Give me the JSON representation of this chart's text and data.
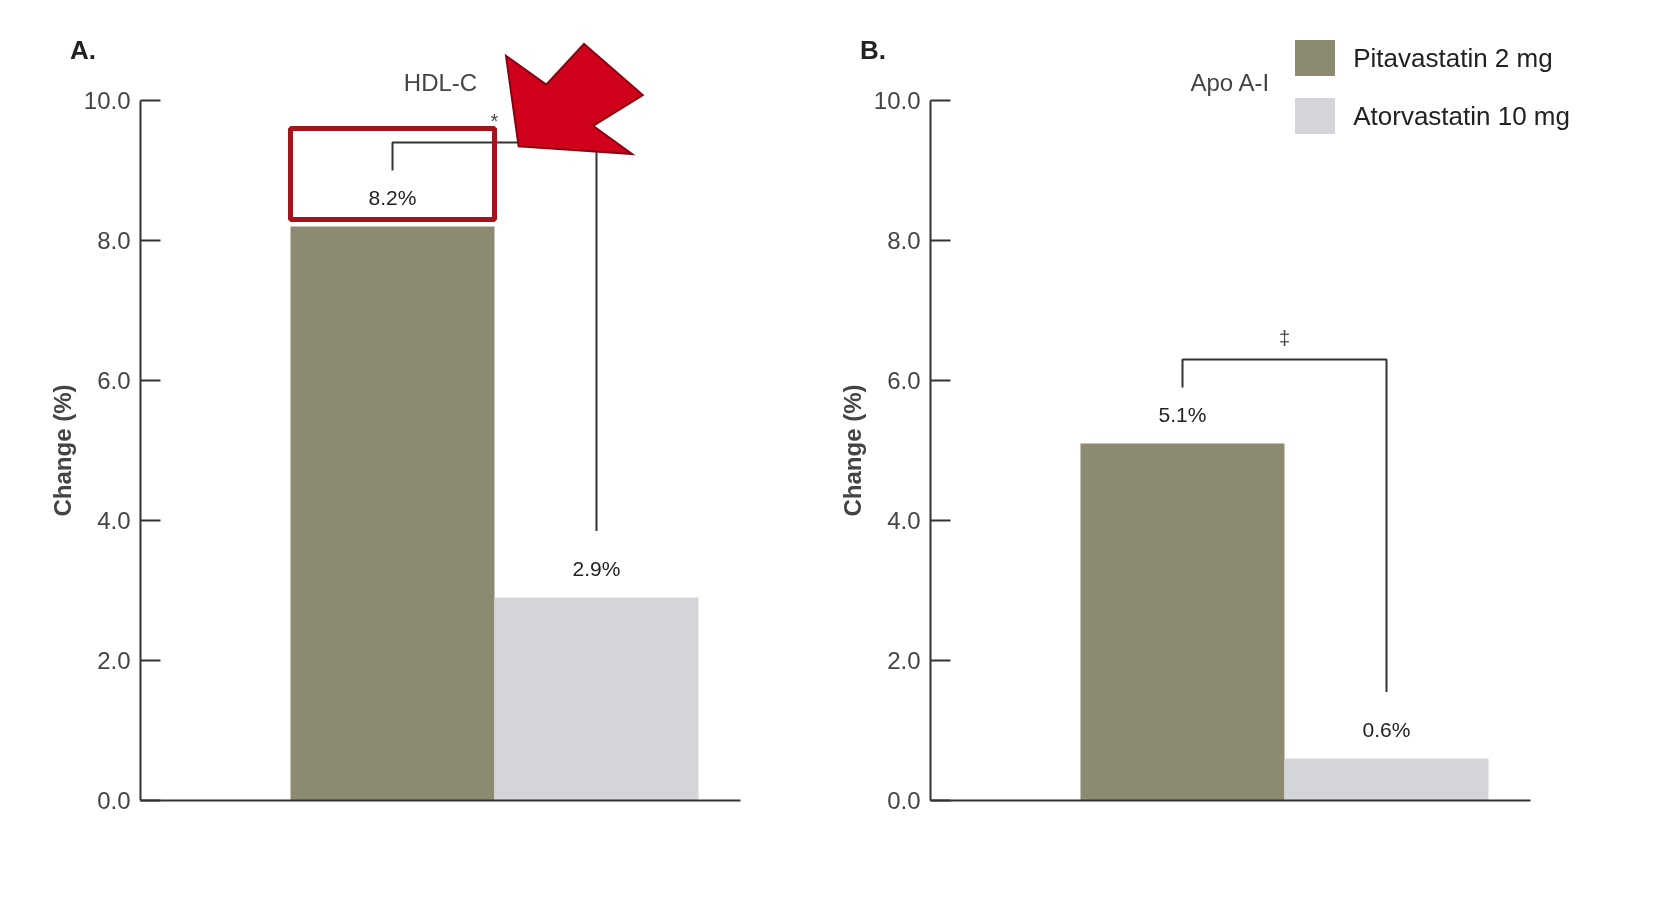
{
  "chart_data": [
    {
      "type": "bar",
      "title": "HDL-C",
      "ylabel": "Change (%)",
      "categories": [
        null
      ],
      "series": [
        {
          "color": "#8c8a70",
          "values": [
            8.2
          ],
          "value_labels": [
            "8.2%"
          ]
        },
        {
          "color": "#d4d5d8",
          "values": [
            2.9
          ],
          "value_labels": [
            "2.9%"
          ]
        }
      ],
      "ylim": [
        0,
        10
      ],
      "yticks": [
        {
          "value": 0,
          "label": "0.0"
        },
        {
          "value": 2,
          "label": "2.0"
        },
        {
          "value": 4,
          "label": "4.0"
        },
        {
          "value": 6,
          "label": "6.0"
        },
        {
          "value": 8,
          "label": "8.0"
        },
        {
          "value": 10,
          "label": "10.0"
        }
      ],
      "annotations": [
        "A.",
        "*"
      ],
      "grid": false,
      "tick_labels": "y"
    },
    {
      "type": "bar",
      "title": "Apo A-I",
      "ylabel": "Change (%)",
      "categories": [
        null
      ],
      "series": [
        {
          "name": "Pitavastatin 2 mg",
          "color": "#8c8a70",
          "values": [
            5.1
          ],
          "value_labels": [
            "5.1%"
          ]
        },
        {
          "name": "Atorvastatin 10 mg",
          "color": "#d4d5d8",
          "values": [
            0.6
          ],
          "value_labels": [
            "0.6%"
          ]
        }
      ],
      "ylim": [
        0,
        10
      ],
      "yticks": [
        {
          "value": 0,
          "label": "0.0"
        },
        {
          "value": 2,
          "label": "2.0"
        },
        {
          "value": 4,
          "label": "4.0"
        },
        {
          "value": 6,
          "label": "6.0"
        },
        {
          "value": 8,
          "label": "8.0"
        },
        {
          "value": 10,
          "label": "10.0"
        }
      ],
      "annotations": [
        "B.",
        "‡"
      ],
      "grid": false,
      "legend": "top right",
      "tick_labels": "y"
    }
  ]
}
